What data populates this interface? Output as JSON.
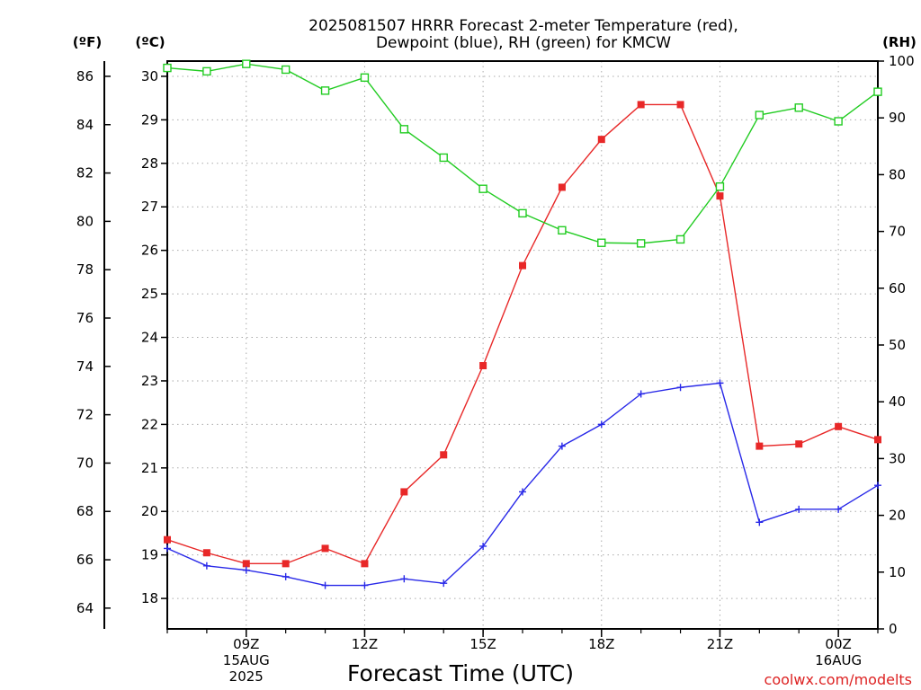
{
  "chart_data": {
    "type": "line",
    "title_lines": [
      "2025081507 HRRR Forecast 2-meter Temperature (red),",
      "Dewpoint (blue), RH (green) for KMCW"
    ],
    "xlabel": "Forecast Time (UTC)",
    "credit": "coolwx.com/modelts",
    "unit_labels": {
      "fahrenheit": "(ºF)",
      "celsius": "(ºC)",
      "rh": "(RH)"
    },
    "x_hours": [
      7,
      8,
      9,
      10,
      11,
      12,
      13,
      14,
      15,
      16,
      17,
      18,
      19,
      20,
      21,
      22,
      23,
      24,
      25
    ],
    "xlim": [
      7,
      25
    ],
    "x_ticks": [
      {
        "hour": 9,
        "lines": [
          "09Z",
          "15AUG",
          "2025"
        ]
      },
      {
        "hour": 12,
        "lines": [
          "12Z"
        ]
      },
      {
        "hour": 15,
        "lines": [
          "15Z"
        ]
      },
      {
        "hour": 18,
        "lines": [
          "18Z"
        ]
      },
      {
        "hour": 21,
        "lines": [
          "21Z"
        ]
      },
      {
        "hour": 24,
        "lines": [
          "00Z",
          "16AUG"
        ]
      }
    ],
    "celsius_axis": {
      "lim": [
        17.3,
        30.35
      ],
      "ticks": [
        18,
        19,
        20,
        21,
        22,
        23,
        24,
        25,
        26,
        27,
        28,
        29,
        30
      ]
    },
    "fahrenheit_axis": {
      "ticks": [
        64,
        66,
        68,
        70,
        72,
        74,
        76,
        78,
        80,
        82,
        84,
        86
      ]
    },
    "rh_axis": {
      "lim": [
        0,
        100
      ],
      "ticks": [
        0,
        10,
        20,
        30,
        40,
        50,
        60,
        70,
        80,
        90,
        100
      ]
    },
    "grid": true,
    "series": [
      {
        "name": "Temperature",
        "axis": "celsius",
        "color": "#e82828",
        "marker": "filled-square",
        "values": [
          19.35,
          19.05,
          18.8,
          18.8,
          19.15,
          18.8,
          20.45,
          21.3,
          23.35,
          25.65,
          27.45,
          28.55,
          29.35,
          29.35,
          27.25,
          21.5,
          21.55,
          21.95,
          21.65
        ]
      },
      {
        "name": "Dewpoint",
        "axis": "celsius",
        "color": "#2828e8",
        "marker": "plus",
        "values": [
          19.15,
          18.75,
          18.65,
          18.5,
          18.3,
          18.3,
          18.45,
          18.35,
          19.2,
          20.45,
          21.5,
          22.0,
          22.7,
          22.85,
          22.95,
          19.75,
          20.05,
          20.05,
          20.6
        ]
      },
      {
        "name": "RH",
        "axis": "rh",
        "color": "#22cc22",
        "marker": "open-square",
        "values": [
          98.8,
          98.2,
          99.5,
          98.5,
          94.8,
          97.1,
          88.0,
          83.0,
          77.5,
          73.2,
          70.2,
          68.0,
          67.9,
          68.6,
          77.9,
          90.5,
          91.8,
          89.4,
          94.6
        ]
      }
    ]
  }
}
